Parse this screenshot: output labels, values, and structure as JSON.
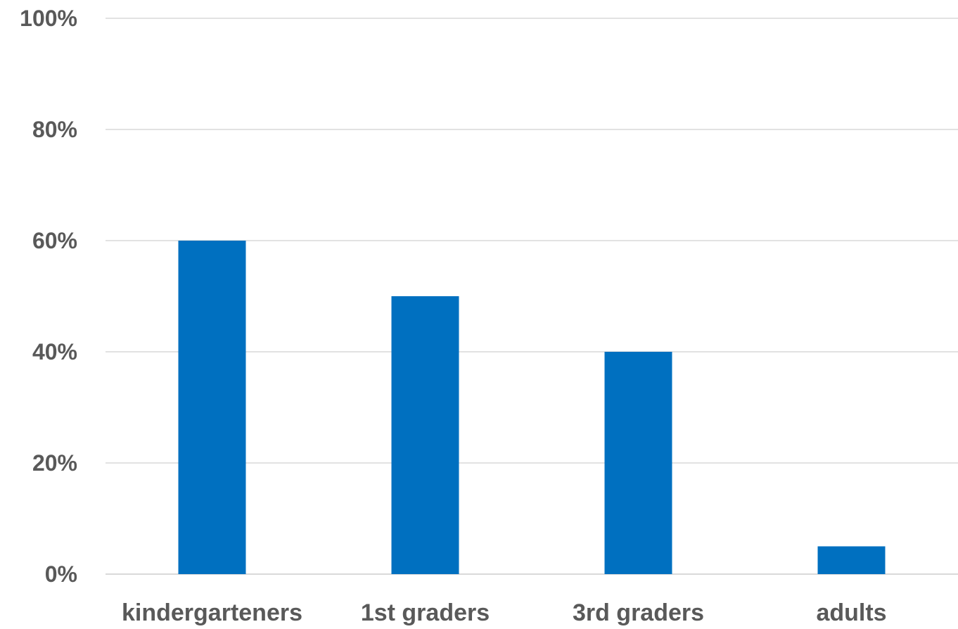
{
  "chart_data": {
    "type": "bar",
    "categories": [
      "kindergarteners",
      "1st graders",
      "3rd graders",
      "adults"
    ],
    "values": [
      60,
      50,
      40,
      5
    ],
    "ylim": [
      0,
      100
    ],
    "yticks": [
      "0%",
      "20%",
      "40%",
      "60%",
      "80%",
      "100%"
    ],
    "ytick_values": [
      0,
      20,
      40,
      60,
      80,
      100
    ],
    "grid": true,
    "bar_color": "#0070C0",
    "title": "",
    "xlabel": "",
    "ylabel": ""
  }
}
